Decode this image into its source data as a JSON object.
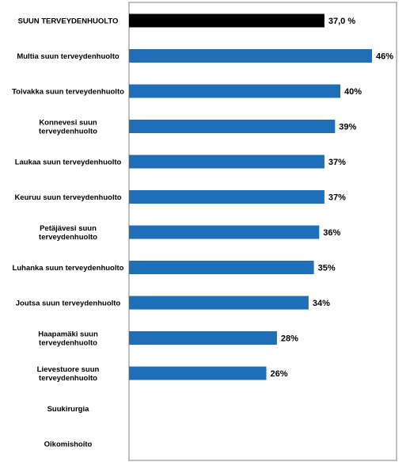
{
  "chart_data": {
    "type": "bar",
    "orientation": "horizontal",
    "categories": [
      "SUUN TERVEYDENHUOLTO",
      "Multia suun terveydenhuolto",
      "Toivakka suun terveydenhuolto",
      "Konnevesi suun terveydenhuolto",
      "Laukaa suun terveydenhuolto",
      "Keuruu suun terveydenhuolto",
      "Petäjävesi suun terveydenhuolto",
      "Luhanka suun terveydenhuolto",
      "Joutsa suun terveydenhuolto",
      "Haapamäki suun terveydenhuolto",
      "Lievestuore suun terveydenhuolto",
      "Suukirurgia",
      "Oikomishoito"
    ],
    "label_lines": [
      [
        "SUUN TERVEYDENHUOLTO"
      ],
      [
        "Multia suun terveydenhuolto"
      ],
      [
        "Toivakka suun terveydenhuolto"
      ],
      [
        "Konnevesi suun",
        "terveydenhuolto"
      ],
      [
        "Laukaa suun terveydenhuolto"
      ],
      [
        "Keuruu suun terveydenhuolto"
      ],
      [
        "Petäjävesi suun",
        "terveydenhuolto"
      ],
      [
        "Luhanka suun terveydenhuolto"
      ],
      [
        "Joutsa suun terveydenhuolto"
      ],
      [
        "Haapamäki suun",
        "terveydenhuolto"
      ],
      [
        "Lievestuore suun",
        "terveydenhuolto"
      ],
      [
        "Suukirurgia"
      ],
      [
        "Oikomishoito"
      ]
    ],
    "values": [
      37.0,
      46,
      40,
      39,
      37,
      37,
      36,
      35,
      34,
      28,
      26,
      null,
      null
    ],
    "value_labels": [
      "37,0 %",
      "46%",
      "40%",
      "39%",
      "37%",
      "37%",
      "36%",
      "35%",
      "34%",
      "28%",
      "26%",
      "",
      ""
    ],
    "bar_colors": [
      "#000000",
      "#1f6fb8",
      "#1f6fb8",
      "#1f6fb8",
      "#1f6fb8",
      "#1f6fb8",
      "#1f6fb8",
      "#1f6fb8",
      "#1f6fb8",
      "#1f6fb8",
      "#1f6fb8",
      "#1f6fb8",
      "#1f6fb8"
    ],
    "xlim": [
      0,
      46
    ],
    "title": "",
    "xlabel": "",
    "ylabel": "",
    "grid": false,
    "legend": "none"
  }
}
